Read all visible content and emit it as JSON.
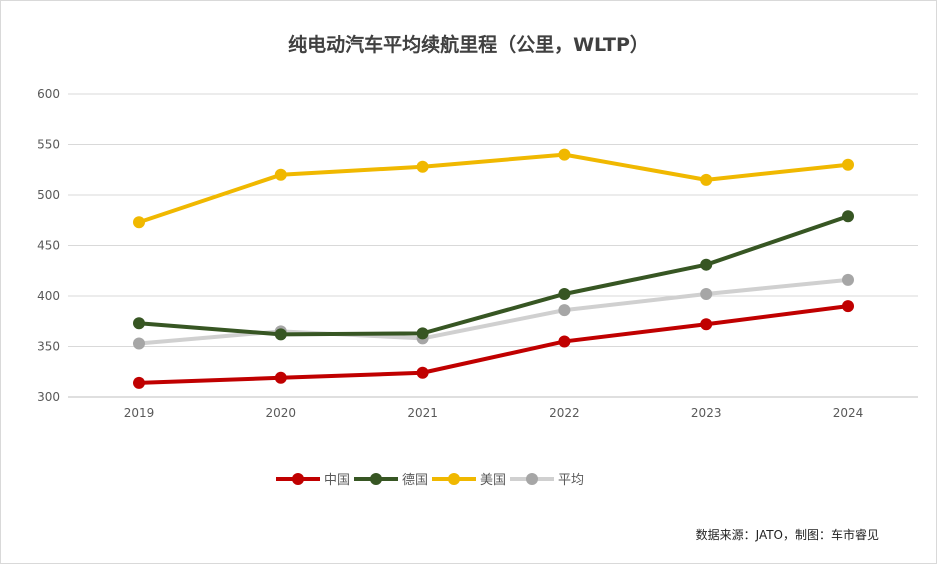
{
  "chart_data": {
    "type": "line",
    "title": "纯电动汽车平均续航里程（公里，WLTP）",
    "xlabel": "",
    "ylabel": "",
    "categories": [
      "2019",
      "2020",
      "2021",
      "2022",
      "2023",
      "2024"
    ],
    "ylim": [
      300,
      600
    ],
    "yticks": [
      "300",
      "350",
      "400",
      "450",
      "500",
      "550",
      "600"
    ],
    "grid": true,
    "legend_position": "bottom",
    "series": [
      {
        "name": "中国",
        "color": "#C00000",
        "marker_color": "#C00000",
        "values": [
          314,
          319,
          324,
          355,
          372,
          390
        ]
      },
      {
        "name": "德国",
        "color": "#375623",
        "marker_color": "#375623",
        "values": [
          373,
          362,
          363,
          402,
          431,
          479
        ]
      },
      {
        "name": "美国",
        "color": "#F0B800",
        "marker_color": "#F0B800",
        "values": [
          473,
          520,
          528,
          540,
          515,
          530
        ]
      },
      {
        "name": "平均",
        "color": "#D0D0D0",
        "marker_color": "#A6A6A6",
        "values": [
          353,
          365,
          358,
          386,
          402,
          416
        ]
      }
    ]
  },
  "source": "数据来源：JATO，制图：车市睿见"
}
